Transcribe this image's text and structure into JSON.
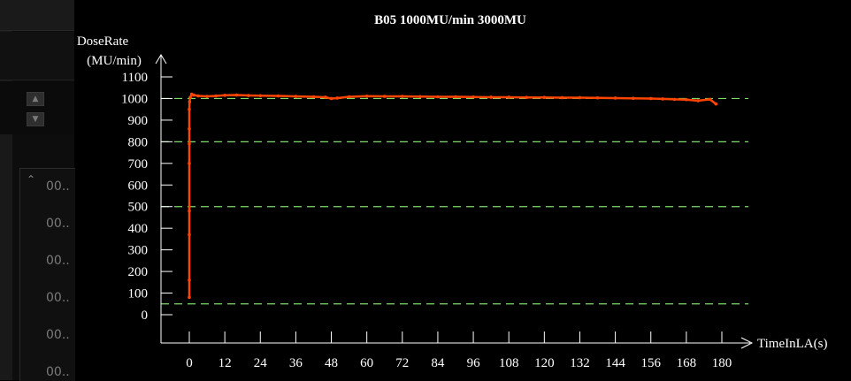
{
  "side_panel": {
    "list_items": [
      "00..",
      "00..",
      "00..",
      "00..",
      "00..",
      "00.."
    ]
  },
  "chart_data": {
    "type": "line",
    "title": "B05 1000MU/min 3000MU",
    "ylabel_line1": "DoseRate",
    "ylabel_line2": "(MU/min)",
    "xlabel": "TimeInLA(s)",
    "xlim": [
      0,
      180
    ],
    "ylim": [
      0,
      1100
    ],
    "xticks": [
      0,
      12,
      24,
      36,
      48,
      60,
      72,
      84,
      96,
      108,
      120,
      132,
      144,
      156,
      168,
      180
    ],
    "yticks": [
      0,
      100,
      200,
      300,
      400,
      500,
      600,
      700,
      800,
      900,
      1000,
      1100
    ],
    "reference_lines": [
      50,
      500,
      800,
      1000
    ],
    "colors": {
      "series": "#ff4500",
      "reference": "#7ddc6a",
      "axis": "#ffffff"
    },
    "series": [
      {
        "x": [
          0,
          0,
          0,
          0,
          0,
          0,
          0,
          0,
          0.1,
          0.3,
          0.8,
          1.5,
          3,
          6,
          9,
          12,
          16,
          20,
          24,
          30,
          36,
          42,
          46,
          48,
          50,
          54,
          60,
          66,
          72,
          78,
          84,
          90,
          96,
          102,
          108,
          114,
          120,
          126,
          132,
          138,
          144,
          150,
          156,
          160,
          164,
          168,
          172,
          176,
          178
        ],
        "y": [
          80,
          160,
          370,
          480,
          700,
          790,
          860,
          950,
          985,
          1005,
          1020,
          1016,
          1012,
          1010,
          1012,
          1015,
          1016,
          1014,
          1013,
          1012,
          1010,
          1008,
          1006,
          1000,
          1002,
          1008,
          1011,
          1010,
          1010,
          1009,
          1008,
          1008,
          1007,
          1006,
          1006,
          1005,
          1005,
          1004,
          1004,
          1003,
          1002,
          1001,
          1000,
          998,
          996,
          995,
          990,
          996,
          975
        ]
      }
    ]
  }
}
